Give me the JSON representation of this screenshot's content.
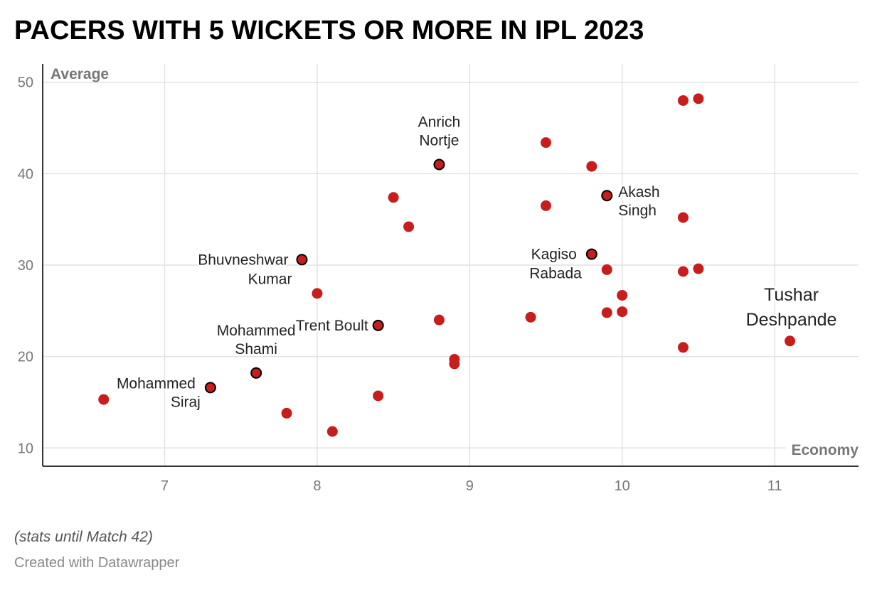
{
  "title": "PACERS WITH 5 WICKETS OR MORE IN IPL 2023",
  "note": "(stats until Match 42)",
  "credit": "Created with Datawrapper",
  "chart_data": {
    "type": "scatter",
    "title": "PACERS WITH 5 WICKETS OR MORE IN IPL 2023",
    "xlabel": "Economy",
    "ylabel": "Average",
    "xlim": [
      6.2,
      11.55
    ],
    "ylim": [
      8,
      52
    ],
    "x_ticks": [
      7,
      8,
      9,
      10,
      11
    ],
    "y_ticks": [
      10,
      20,
      30,
      40,
      50
    ],
    "grid": true,
    "colors": {
      "point": "#c71e1d",
      "outline": "#000000",
      "grid": "#e2e2e2",
      "axis": "#333333"
    },
    "points": [
      {
        "x": 6.6,
        "y": 15.3
      },
      {
        "x": 7.3,
        "y": 16.6,
        "label": [
          "Mohammed",
          "Siraj"
        ],
        "highlight": true
      },
      {
        "x": 7.6,
        "y": 18.2,
        "label": [
          "Mohammed",
          "Shami"
        ],
        "highlight": true
      },
      {
        "x": 7.8,
        "y": 13.8
      },
      {
        "x": 7.9,
        "y": 30.6,
        "label": [
          "Bhuvneshwar",
          "Kumar"
        ],
        "highlight": true
      },
      {
        "x": 8.0,
        "y": 26.9
      },
      {
        "x": 8.1,
        "y": 11.8
      },
      {
        "x": 8.4,
        "y": 15.7
      },
      {
        "x": 8.4,
        "y": 23.4,
        "label": [
          "Trent Boult"
        ],
        "highlight": true
      },
      {
        "x": 8.5,
        "y": 37.4
      },
      {
        "x": 8.6,
        "y": 34.2
      },
      {
        "x": 8.8,
        "y": 24.0
      },
      {
        "x": 8.8,
        "y": 41.0,
        "label": [
          "Anrich",
          "Nortje"
        ],
        "highlight": true
      },
      {
        "x": 8.9,
        "y": 19.7
      },
      {
        "x": 8.9,
        "y": 19.2
      },
      {
        "x": 9.4,
        "y": 24.3
      },
      {
        "x": 9.5,
        "y": 43.4
      },
      {
        "x": 9.5,
        "y": 36.5
      },
      {
        "x": 9.8,
        "y": 40.8
      },
      {
        "x": 9.8,
        "y": 31.2,
        "label": [
          "Kagiso",
          "Rabada"
        ],
        "highlight": true
      },
      {
        "x": 9.9,
        "y": 37.6,
        "label": [
          "Akash",
          "Singh"
        ],
        "highlight": true
      },
      {
        "x": 9.9,
        "y": 29.5
      },
      {
        "x": 9.9,
        "y": 24.8
      },
      {
        "x": 10.0,
        "y": 26.7
      },
      {
        "x": 10.0,
        "y": 24.9
      },
      {
        "x": 10.4,
        "y": 48.0
      },
      {
        "x": 10.4,
        "y": 35.2
      },
      {
        "x": 10.4,
        "y": 29.3
      },
      {
        "x": 10.4,
        "y": 21.0
      },
      {
        "x": 10.5,
        "y": 48.2
      },
      {
        "x": 10.5,
        "y": 29.6
      },
      {
        "x": 11.1,
        "y": 21.7,
        "label": [
          "Tushar",
          "Deshpande"
        ],
        "highlight": false
      }
    ]
  }
}
